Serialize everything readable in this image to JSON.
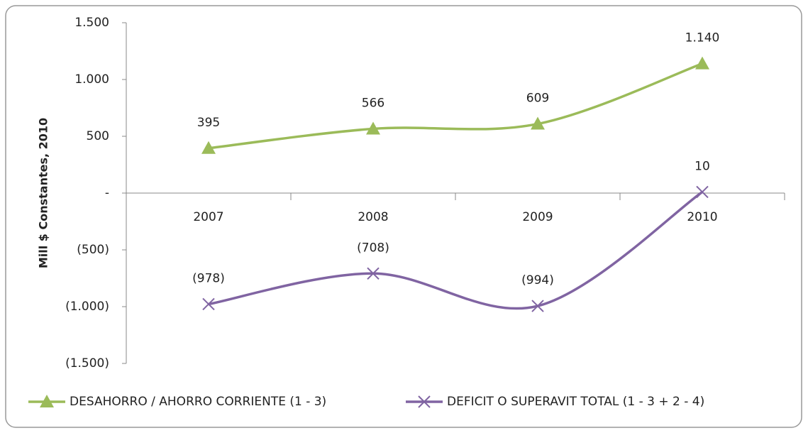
{
  "chart_data": {
    "type": "line",
    "y_label": "Mill $ Constantes, 2010",
    "categories": [
      "2007",
      "2008",
      "2009",
      "2010"
    ],
    "series": [
      {
        "name": "DESAHORRO / AHORRO CORRIENTE (1 - 3)",
        "color": "#9bbb59",
        "marker": "triangle",
        "values": [
          395,
          566,
          609,
          1140
        ],
        "value_labels": [
          "395",
          "566",
          "609",
          "1.140"
        ]
      },
      {
        "name": "DEFICIT O SUPERAVIT TOTAL (1 - 3 + 2 - 4)",
        "color": "#8064a2",
        "marker": "x",
        "values": [
          -978,
          -708,
          -994,
          10
        ],
        "value_labels": [
          "(978)",
          "(708)",
          "(994)",
          "10"
        ]
      }
    ],
    "ylim": [
      -1500,
      1500
    ],
    "yticks": [
      {
        "value": 1500,
        "label": "1.500"
      },
      {
        "value": 1000,
        "label": "1.000"
      },
      500,
      {
        "value": 0,
        "label": "-"
      },
      {
        "value": -500,
        "label": "(500)"
      },
      {
        "value": -1000,
        "label": "(1.000)"
      },
      {
        "value": -1500,
        "label": "(1.500)"
      }
    ],
    "legend": "bottom"
  }
}
